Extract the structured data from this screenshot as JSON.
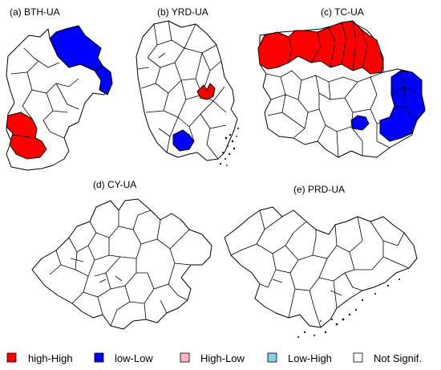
{
  "panels": {
    "bth": {
      "label": "(a) BTH-UA"
    },
    "yrd": {
      "label": "(b) YRD-UA"
    },
    "tc": {
      "label": "(c) TC-UA"
    },
    "cy": {
      "label": "(d) CY-UA"
    },
    "prd": {
      "label": "(e) PRD-UA"
    }
  },
  "legend": {
    "items": [
      {
        "label": "high-High",
        "color": "#ff0000"
      },
      {
        "label": "low-Low",
        "color": "#0000ff"
      },
      {
        "label": "High-Low",
        "color": "#ffb6c1"
      },
      {
        "label": "Low-High",
        "color": "#87ceeb"
      },
      {
        "label": "Not Signif.",
        "color": "#ffffff"
      }
    ]
  },
  "colors": {
    "high_high": "#ff0000",
    "low_low": "#0000ff",
    "not_significant": "#ffffff",
    "boundary": "#000000"
  }
}
